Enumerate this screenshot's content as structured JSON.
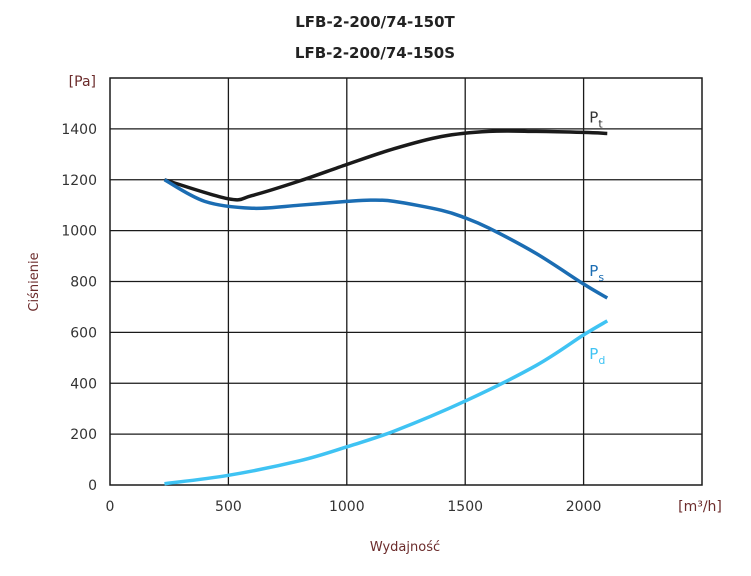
{
  "chart_data": {
    "type": "line",
    "title": [
      "LFB-2-200/74-150T",
      "LFB-2-200/74-150S"
    ],
    "xlabel": "Wydajność",
    "ylabel": "Ciśnienie",
    "xunit": "[m³/h]",
    "yunit": "[Pa]",
    "xlim": [
      0,
      2500
    ],
    "ylim": [
      0,
      1600
    ],
    "xticks": [
      0,
      500,
      1000,
      1500,
      2000
    ],
    "yticks": [
      0,
      200,
      400,
      600,
      800,
      1000,
      1200,
      1400
    ],
    "grid": true,
    "series": [
      {
        "name": "Pt",
        "base": "P",
        "sub": "t",
        "color": "#1a1a1a",
        "x": [
          230,
          500,
          600,
          800,
          1000,
          1200,
          1400,
          1600,
          1800,
          2000,
          2100
        ],
        "y": [
          1200,
          1125,
          1138,
          1195,
          1260,
          1322,
          1370,
          1390,
          1390,
          1386,
          1382
        ]
      },
      {
        "name": "Ps",
        "base": "P",
        "sub": "s",
        "color": "#1b6db3",
        "x": [
          230,
          400,
          600,
          800,
          1000,
          1100,
          1200,
          1400,
          1500,
          1600,
          1800,
          2000,
          2100
        ],
        "y": [
          1200,
          1115,
          1088,
          1100,
          1115,
          1120,
          1115,
          1080,
          1050,
          1010,
          910,
          790,
          735
        ]
      },
      {
        "name": "Pd",
        "base": "P",
        "sub": "d",
        "color": "#3fc3f3",
        "x": [
          230,
          500,
          800,
          1000,
          1200,
          1500,
          1800,
          2000,
          2100
        ],
        "y": [
          5,
          38,
          95,
          150,
          212,
          330,
          470,
          590,
          645
        ]
      }
    ]
  }
}
